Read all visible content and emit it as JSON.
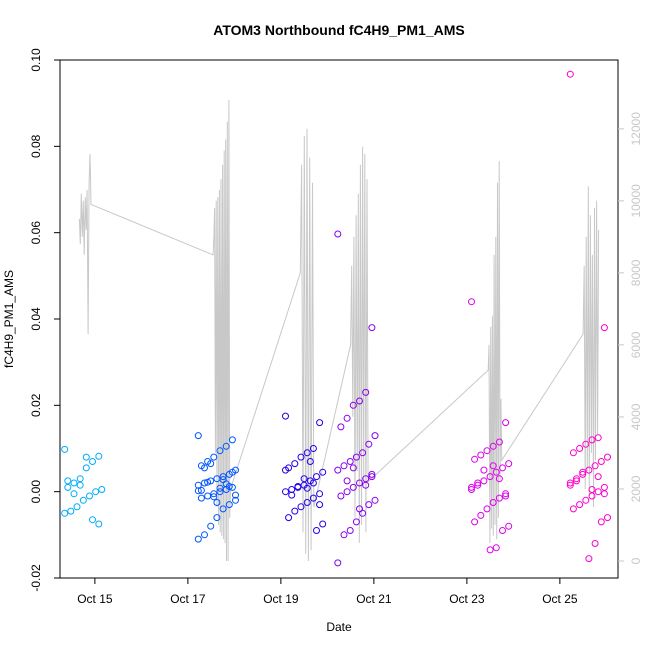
{
  "chart_data": {
    "type": "scatter",
    "title": "ATOM3 Northbound fC4H9_PM1_AMS",
    "xlabel": "Date",
    "ylabel": "fC4H9_PM1_AMS",
    "xlim": [
      "2016-10-14 06:00",
      "2016-10-26 06:00"
    ],
    "ylim": [
      -0.02,
      0.1
    ],
    "y_ticks": [
      "-0.02",
      "0.00",
      "0.02",
      "0.04",
      "0.06",
      "0.08",
      "0.10"
    ],
    "x_ticks": [
      "Oct 15",
      "Oct 17",
      "Oct 19",
      "Oct 21",
      "Oct 23",
      "Oct 25"
    ],
    "y2_ticks": [
      "0",
      "2000",
      "4000",
      "6000",
      "8000",
      "10000",
      "12000"
    ],
    "y2_range": [
      0,
      12800
    ],
    "colors": {
      "points": [
        "#00aaff",
        "#0055ff",
        "#2200ee",
        "#8800ee",
        "#dd00ee",
        "#ff00cc"
      ],
      "line": "#c8c8c8",
      "right_axis": "#c8c8c8"
    },
    "scatter_series": [
      {
        "x": "2016-10-14 18:00",
        "y": [
          0.0098,
          0.0082,
          0.007,
          0.0055,
          0.003,
          0.002,
          0.001,
          0.0005,
          0.0,
          -0.001,
          -0.002,
          -0.0035,
          -0.0045,
          -0.005,
          -0.0075,
          -0.0065,
          0.008,
          0.0015,
          -0.0005,
          0.0025
        ]
      },
      {
        "x": "2016-10-17 15:00",
        "y": [
          0.013,
          0.012,
          0.0105,
          0.0095,
          0.008,
          0.007,
          0.006,
          0.005,
          0.004,
          0.0035,
          0.003,
          0.0025,
          0.002,
          0.0015,
          0.001,
          0.0005,
          0.0,
          -0.0005,
          -0.001,
          -0.0015,
          -0.002,
          -0.003,
          -0.004,
          -0.006,
          -0.008,
          -0.01,
          -0.011,
          0.0045,
          0.0018,
          0.0008,
          -0.0012,
          0.0022,
          0.0003,
          -0.0008,
          0.0012,
          0.0028,
          -0.0025,
          0.0065,
          0.0055,
          0.0002
        ]
      },
      {
        "x": "2016-10-19 12:00",
        "y": [
          0.0175,
          0.016,
          0.01,
          0.009,
          0.008,
          0.0065,
          0.0055,
          0.0045,
          0.0035,
          0.0025,
          0.0015,
          0.001,
          0.0005,
          0.0,
          -0.0005,
          -0.0015,
          -0.0025,
          -0.0035,
          -0.0045,
          -0.006,
          -0.0075,
          -0.009,
          0.007,
          0.003,
          0.0012,
          -0.0008,
          0.005,
          -0.003,
          0.002,
          0.0008
        ]
      },
      {
        "x": "2016-10-20 15:00",
        "y": [
          0.0597,
          0.038,
          0.023,
          0.021,
          0.02,
          0.017,
          0.015,
          0.013,
          0.011,
          0.009,
          0.008,
          0.007,
          0.006,
          0.005,
          0.004,
          0.003,
          0.002,
          0.001,
          0.0,
          -0.001,
          -0.002,
          -0.003,
          -0.005,
          -0.007,
          -0.009,
          -0.01,
          -0.0165,
          0.0035,
          0.0015,
          -0.004,
          0.0055,
          0.0025
        ]
      },
      {
        "x": "2016-10-23 12:00",
        "y": [
          0.044,
          0.016,
          0.0115,
          0.0105,
          0.0095,
          0.0085,
          0.0075,
          0.0065,
          0.0055,
          0.0045,
          0.0035,
          0.0025,
          0.0015,
          0.0005,
          -0.0005,
          -0.0015,
          -0.0025,
          -0.004,
          -0.0055,
          -0.007,
          -0.008,
          -0.009,
          -0.013,
          -0.0135,
          0.005,
          0.002,
          0.001,
          -0.001,
          0.003,
          0.006
        ]
      },
      {
        "x": "2016-10-25 15:00",
        "y": [
          0.0967,
          0.038,
          0.0125,
          0.012,
          0.011,
          0.01,
          0.009,
          0.008,
          0.007,
          0.006,
          0.005,
          0.004,
          0.003,
          0.002,
          0.001,
          0.0,
          -0.001,
          -0.002,
          -0.003,
          -0.004,
          -0.006,
          -0.007,
          -0.012,
          -0.0155,
          0.0045,
          0.0025,
          0.0015,
          -0.0005,
          0.0035,
          0.0005
        ]
      }
    ],
    "line_series": {
      "axis": "right",
      "segments": [
        {
          "start": "2016-10-14 16:00",
          "end": "2016-10-14 22:00",
          "values": [
            9500,
            8800,
            10200,
            9000,
            10000,
            8500,
            10100,
            9200,
            10300,
            6300,
            10500,
            11300,
            9900
          ]
        },
        {
          "start": "2016-10-17 13:00",
          "end": "2016-10-17 22:00",
          "values": [
            8500,
            9000,
            9800,
            3000,
            10000,
            1500,
            10100,
            1000,
            10300,
            800,
            10600,
            700,
            11000,
            600,
            11400,
            500,
            11700,
            0,
            12200,
            0,
            12800,
            1200,
            2000
          ]
        },
        {
          "start": "2016-10-19 10:00",
          "end": "2016-10-19 17:00",
          "values": [
            8000,
            11000,
            800,
            11800,
            200,
            12000,
            0,
            11200,
            300,
            10500,
            1500
          ]
        },
        {
          "start": "2016-10-20 12:00",
          "end": "2016-10-20 21:00",
          "values": [
            6000,
            8200,
            4000,
            9000,
            1200,
            9600,
            2500,
            10200,
            500,
            11000,
            1000,
            11500,
            2200,
            11300,
            800,
            10600,
            2200
          ]
        },
        {
          "start": "2016-10-23 11:00",
          "end": "2016-10-23 18:00",
          "values": [
            5300,
            6000,
            500,
            6500,
            900,
            6800,
            700,
            8500,
            1000,
            9000,
            600,
            10500,
            1200,
            11100,
            2200,
            4500,
            2800
          ]
        },
        {
          "start": "2016-10-25 12:00",
          "end": "2016-10-25 20:00",
          "values": [
            6300,
            8200,
            2000,
            9000,
            2500,
            10400,
            1800,
            9600,
            3000,
            8500,
            1500,
            9800,
            2800,
            10000,
            3500,
            9200
          ]
        }
      ]
    }
  }
}
